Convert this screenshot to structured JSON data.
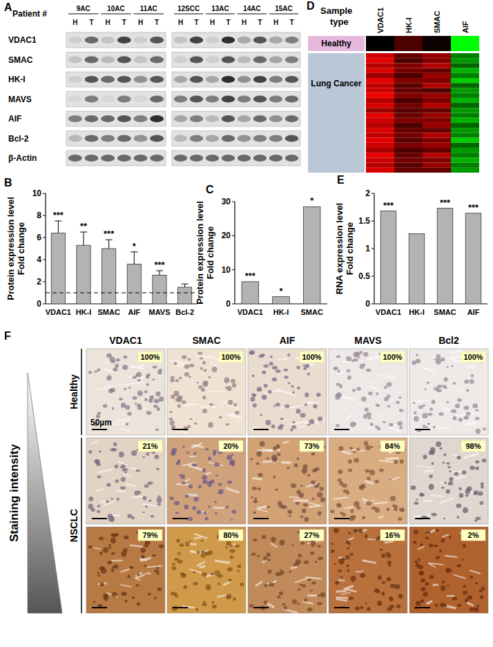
{
  "panels": {
    "A": {
      "label": "A",
      "patient_header": "Patient #",
      "patients": [
        "9AC",
        "10AC",
        "11AC",
        "12SCC",
        "13AC",
        "14AC",
        "15AC"
      ],
      "lanes": [
        "H",
        "T"
      ],
      "proteins": [
        "VDAC1",
        "SMAC",
        "HK-I",
        "MAVS",
        "AIF",
        "Bcl-2",
        "β-Actin"
      ],
      "bands": [
        [
          0.1,
          0.6,
          0.15,
          0.8,
          0.1,
          0.7,
          0.15,
          0.8,
          0.1,
          0.9,
          0.3,
          0.7,
          0.3,
          0.5
        ],
        [
          0.15,
          0.6,
          0.2,
          0.7,
          0.15,
          0.6,
          0.1,
          0.7,
          0.1,
          0.7,
          0.2,
          0.6,
          0.3,
          0.5
        ],
        [
          0.1,
          0.7,
          0.6,
          0.7,
          0.4,
          0.7,
          0.3,
          0.7,
          0.3,
          0.9,
          0.4,
          0.8,
          0.5,
          0.7
        ],
        [
          0.05,
          0.5,
          0.05,
          0.5,
          0.05,
          0.6,
          0.5,
          0.7,
          0.5,
          0.8,
          0.5,
          0.7,
          0.5,
          0.6
        ],
        [
          0.5,
          0.6,
          0.6,
          0.7,
          0.5,
          0.9,
          0.3,
          0.5,
          0.2,
          0.7,
          0.3,
          0.6,
          0.4,
          0.6
        ],
        [
          0.2,
          0.6,
          0.5,
          0.6,
          0.4,
          0.7,
          0.2,
          0.5,
          0.3,
          0.6,
          0.4,
          0.5,
          0.5,
          0.7
        ],
        [
          0.6,
          0.6,
          0.6,
          0.6,
          0.6,
          0.6,
          0.6,
          0.6,
          0.6,
          0.6,
          0.6,
          0.6,
          0.6,
          0.6
        ]
      ]
    },
    "D": {
      "label": "D",
      "header": [
        "Sample",
        "type"
      ],
      "columns": [
        "VDAC1",
        "HK-I",
        "SMAC",
        "AIF"
      ],
      "groups": [
        "Healthy",
        "Lung Cancer"
      ],
      "healthy_cells": [
        [
          0,
          0.3,
          0.05,
          -1
        ]
      ],
      "cancer_cells": [
        [
          0.8,
          0.4,
          0.6,
          -0.5
        ],
        [
          0.9,
          0.3,
          0.5,
          -0.6
        ],
        [
          0.7,
          0.5,
          0.7,
          -0.4
        ],
        [
          0.85,
          0.45,
          0.4,
          -0.7
        ],
        [
          0.6,
          0.3,
          0.6,
          -0.5
        ],
        [
          0.9,
          0.5,
          0.5,
          -0.8
        ],
        [
          0.75,
          0.35,
          0.7,
          -0.4
        ],
        [
          0.8,
          0.4,
          0.3,
          -0.6
        ],
        [
          0.95,
          0.5,
          0.6,
          -0.5
        ],
        [
          0.7,
          0.3,
          0.5,
          -0.7
        ],
        [
          0.85,
          0.45,
          0.7,
          -0.4
        ],
        [
          0.6,
          0.35,
          0.4,
          -0.6
        ],
        [
          0.9,
          0.4,
          0.6,
          -0.5
        ],
        [
          0.8,
          0.5,
          0.5,
          -0.7
        ],
        [
          0.7,
          0.3,
          0.6,
          -0.4
        ],
        [
          0.85,
          0.4,
          0.4,
          -0.6
        ],
        [
          0.75,
          0.45,
          0.7,
          -0.5
        ],
        [
          0.9,
          0.35,
          0.5,
          -0.8
        ],
        [
          0.8,
          0.5,
          0.6,
          -0.4
        ],
        [
          0.65,
          0.3,
          0.4,
          -0.6
        ],
        [
          0.9,
          0.4,
          0.7,
          -0.5
        ],
        [
          0.8,
          0.45,
          0.5,
          -0.7
        ],
        [
          0.7,
          0.35,
          0.6,
          -0.5
        ],
        [
          0.85,
          0.4,
          0.4,
          -0.6
        ]
      ]
    },
    "F": {
      "label": "F",
      "columns": [
        "VDAC1",
        "SMAC",
        "AIF",
        "MAVS",
        "Bcl2"
      ],
      "row_groups": [
        "Healthy",
        "NSCLC"
      ],
      "side_label": "Staining intensity",
      "scale_bar": "50µm",
      "percentages": [
        [
          "100%",
          "100%",
          "100%",
          "100%",
          "100%"
        ],
        [
          "21%",
          "20%",
          "73%",
          "84%",
          "98%"
        ],
        [
          "79%",
          "80%",
          "27%",
          "16%",
          "2%"
        ]
      ]
    }
  },
  "chart_data": [
    {
      "panel": "B",
      "type": "bar",
      "y_label": [
        "Protein expression  level",
        "Fold change"
      ],
      "categories": [
        "VDAC1",
        "HK-I",
        "SMAC",
        "AIF",
        "MAVS",
        "Bcl-2"
      ],
      "values": [
        6.4,
        5.3,
        5.0,
        3.6,
        2.6,
        1.5
      ],
      "errors": [
        1.1,
        1.2,
        0.8,
        1.1,
        0.4,
        0.3
      ],
      "significance": [
        "***",
        "**",
        "***",
        "*",
        "***",
        null
      ],
      "reference_line": 1,
      "color": "#b3b3b3",
      "ylim": [
        0,
        10
      ],
      "yticks": [
        0,
        2,
        4,
        6,
        8,
        10
      ]
    },
    {
      "panel": "C",
      "type": "bar",
      "y_label": [
        "Protein expression  level",
        "Fold change"
      ],
      "categories": [
        "VDAC1",
        "HK-I",
        "SMAC"
      ],
      "values": [
        6.5,
        2.1,
        28.5
      ],
      "significance": [
        "***",
        "*",
        "*"
      ],
      "color": "#b3b3b3",
      "ylim": [
        0,
        30
      ],
      "yticks": [
        0,
        10,
        20,
        30
      ]
    },
    {
      "panel": "E",
      "type": "bar",
      "y_label": [
        "RNA expression level",
        "Fold change"
      ],
      "categories": [
        "VDAC1",
        "HK-I",
        "SMAC",
        "AIF"
      ],
      "values": [
        1.68,
        1.27,
        1.73,
        1.64
      ],
      "significance": [
        "***",
        null,
        "***",
        "***"
      ],
      "color": "#b3b3b3",
      "ylim": [
        0,
        2
      ],
      "yticks": [
        0,
        0.5,
        1,
        1.5,
        2
      ]
    }
  ]
}
